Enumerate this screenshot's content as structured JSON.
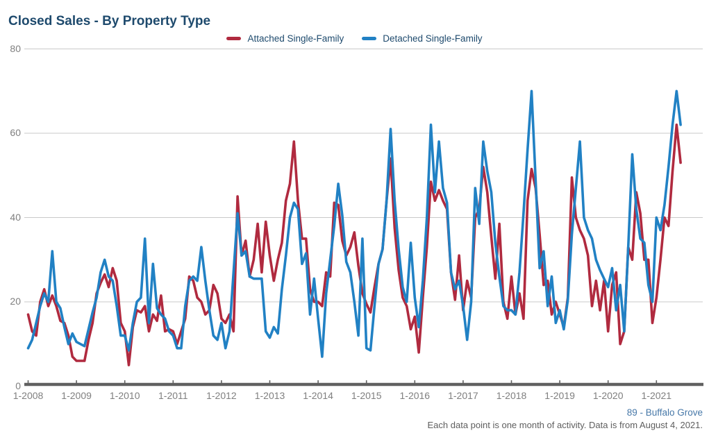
{
  "header": {
    "title": "Closed Sales - By Property Type"
  },
  "legend": [
    {
      "label": "Attached Single-Family",
      "color": "#B02A3F"
    },
    {
      "label": "Detached Single-Family",
      "color": "#2181C4"
    }
  ],
  "footer": {
    "area_label": "89 - Buffalo Grove",
    "note": "Each data point is one month of activity. Data is from August 4, 2021."
  },
  "chart_data": {
    "type": "line",
    "title": "Closed Sales - By Property Type",
    "x_interval": "month",
    "x_start": "1-2008",
    "x_end": "7-2021",
    "x_tick_labels": [
      "1-2008",
      "1-2009",
      "1-2010",
      "1-2011",
      "1-2012",
      "1-2013",
      "1-2014",
      "1-2015",
      "1-2016",
      "1-2017",
      "1-2018",
      "1-2019",
      "1-2020",
      "1-2021"
    ],
    "y_ticks": [
      0,
      20,
      40,
      60,
      80
    ],
    "ylim": [
      0,
      80
    ],
    "grid": "horizontal",
    "legend_position": "top-center",
    "series": [
      {
        "name": "Attached Single-Family",
        "color": "#B02A3F",
        "values": [
          17,
          13,
          12,
          20,
          23,
          19,
          21.5,
          19,
          15.5,
          15,
          12,
          7,
          6,
          6,
          6,
          11,
          15,
          22,
          24.5,
          26.5,
          23.5,
          28,
          25,
          15,
          13,
          5,
          14,
          18,
          17.5,
          19,
          13,
          17,
          15.5,
          21.5,
          13,
          13.5,
          13,
          10,
          13,
          16,
          26,
          25,
          21,
          20,
          17,
          18,
          24,
          22,
          16,
          15,
          17,
          13,
          45,
          31,
          34.5,
          26,
          30,
          38.5,
          27,
          39,
          31,
          25,
          30,
          34,
          44,
          48,
          58,
          44,
          35,
          35,
          23,
          20,
          20,
          19,
          27,
          26,
          43.5,
          43,
          34.5,
          31,
          33,
          36.5,
          28.5,
          22,
          19.5,
          17.5,
          23.5,
          29,
          32.5,
          44,
          54,
          37.5,
          27.5,
          21,
          19,
          13.5,
          16.5,
          8,
          21,
          33,
          48.5,
          44,
          46.5,
          44,
          42,
          27,
          20.5,
          31,
          18,
          25,
          21,
          40,
          42,
          52,
          46,
          35.5,
          25.5,
          38.5,
          20,
          16,
          26,
          17,
          22,
          16,
          44,
          51.5,
          47,
          36,
          24,
          25,
          17,
          20,
          17,
          14,
          21,
          49.5,
          40,
          37,
          35,
          31,
          19,
          25,
          18,
          25,
          13,
          24,
          27,
          10,
          13,
          33,
          30,
          46,
          41,
          30,
          30,
          15,
          21,
          30,
          40,
          38,
          51,
          62,
          53
        ]
      },
      {
        "name": "Detached Single-Family",
        "color": "#2181C4",
        "values": [
          9,
          11,
          15,
          19,
          22,
          20,
          32,
          20,
          18.5,
          14,
          10,
          12.5,
          10.5,
          10,
          9.5,
          13.5,
          17.5,
          21,
          27,
          30,
          26,
          25,
          19,
          12,
          12,
          8.5,
          15,
          20,
          21,
          35,
          15,
          29,
          18.5,
          17,
          16,
          13,
          12,
          9,
          9,
          19,
          25,
          26,
          25,
          33,
          25,
          18,
          12,
          11,
          15,
          9,
          13,
          27,
          41,
          31,
          32,
          26,
          25.5,
          25.5,
          25.5,
          13,
          11.5,
          14,
          12.5,
          23,
          31,
          40,
          43.5,
          42,
          29,
          31.5,
          17,
          25.5,
          16,
          7,
          22,
          30,
          38,
          48,
          40.5,
          29.5,
          27,
          20,
          12,
          35,
          9,
          8.5,
          19,
          29,
          32.5,
          44,
          61,
          44,
          32.5,
          23.5,
          20,
          34,
          21,
          14,
          25,
          40,
          62,
          46,
          58,
          47,
          43.5,
          27,
          23,
          25,
          19,
          11,
          20,
          47,
          38.5,
          58,
          51,
          46,
          34,
          26,
          19,
          18,
          18,
          17,
          27,
          41,
          56,
          70,
          49,
          28,
          32,
          19,
          26,
          15,
          18,
          13.5,
          20.5,
          36,
          47,
          58,
          40,
          37,
          35,
          30,
          27.5,
          25.5,
          23.5,
          28,
          18,
          24,
          13,
          33,
          55,
          42,
          35,
          34,
          24,
          20,
          40,
          37,
          43,
          52,
          62,
          70,
          62
        ]
      }
    ]
  }
}
